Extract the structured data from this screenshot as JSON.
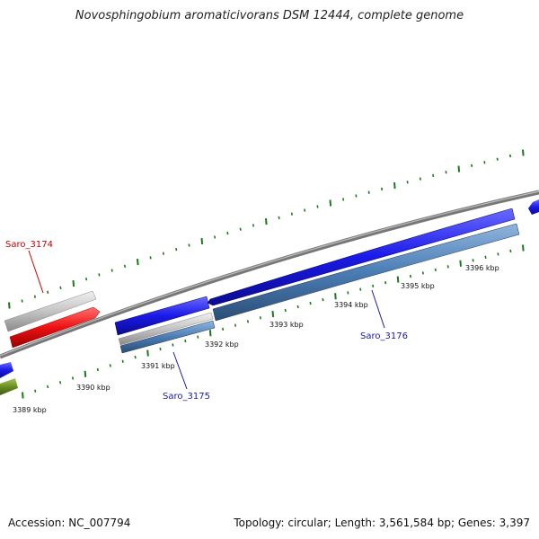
{
  "title": "Novosphingobium aromaticivorans DSM 12444, complete genome",
  "footer": {
    "accession": "Accession: NC_007794",
    "summary": "Topology: circular; Length: 3,561,584 bp; Genes: 3,397"
  },
  "tick_labels": [
    "3389 kbp",
    "3390 kbp",
    "3391 kbp",
    "3392 kbp",
    "3393 kbp",
    "3394 kbp",
    "3395 kbp",
    "3396 kbp"
  ],
  "gene_labels": {
    "saro_3174": "Saro_3174",
    "saro_3175": "Saro_3175",
    "saro_3176": "Saro_3176"
  },
  "colors": {
    "backbone": "#7a7a7a",
    "forward_gene": "#1a1ae0",
    "reverse_gene": "#4a7db5",
    "highlight_gene": "#ee1111",
    "pseudo_gene": "#c4c4c4",
    "other_gene": "#6b8e23",
    "tick": "#1a7a1a",
    "label_red": "#cc0000",
    "label_blue": "#1a1aa0"
  }
}
